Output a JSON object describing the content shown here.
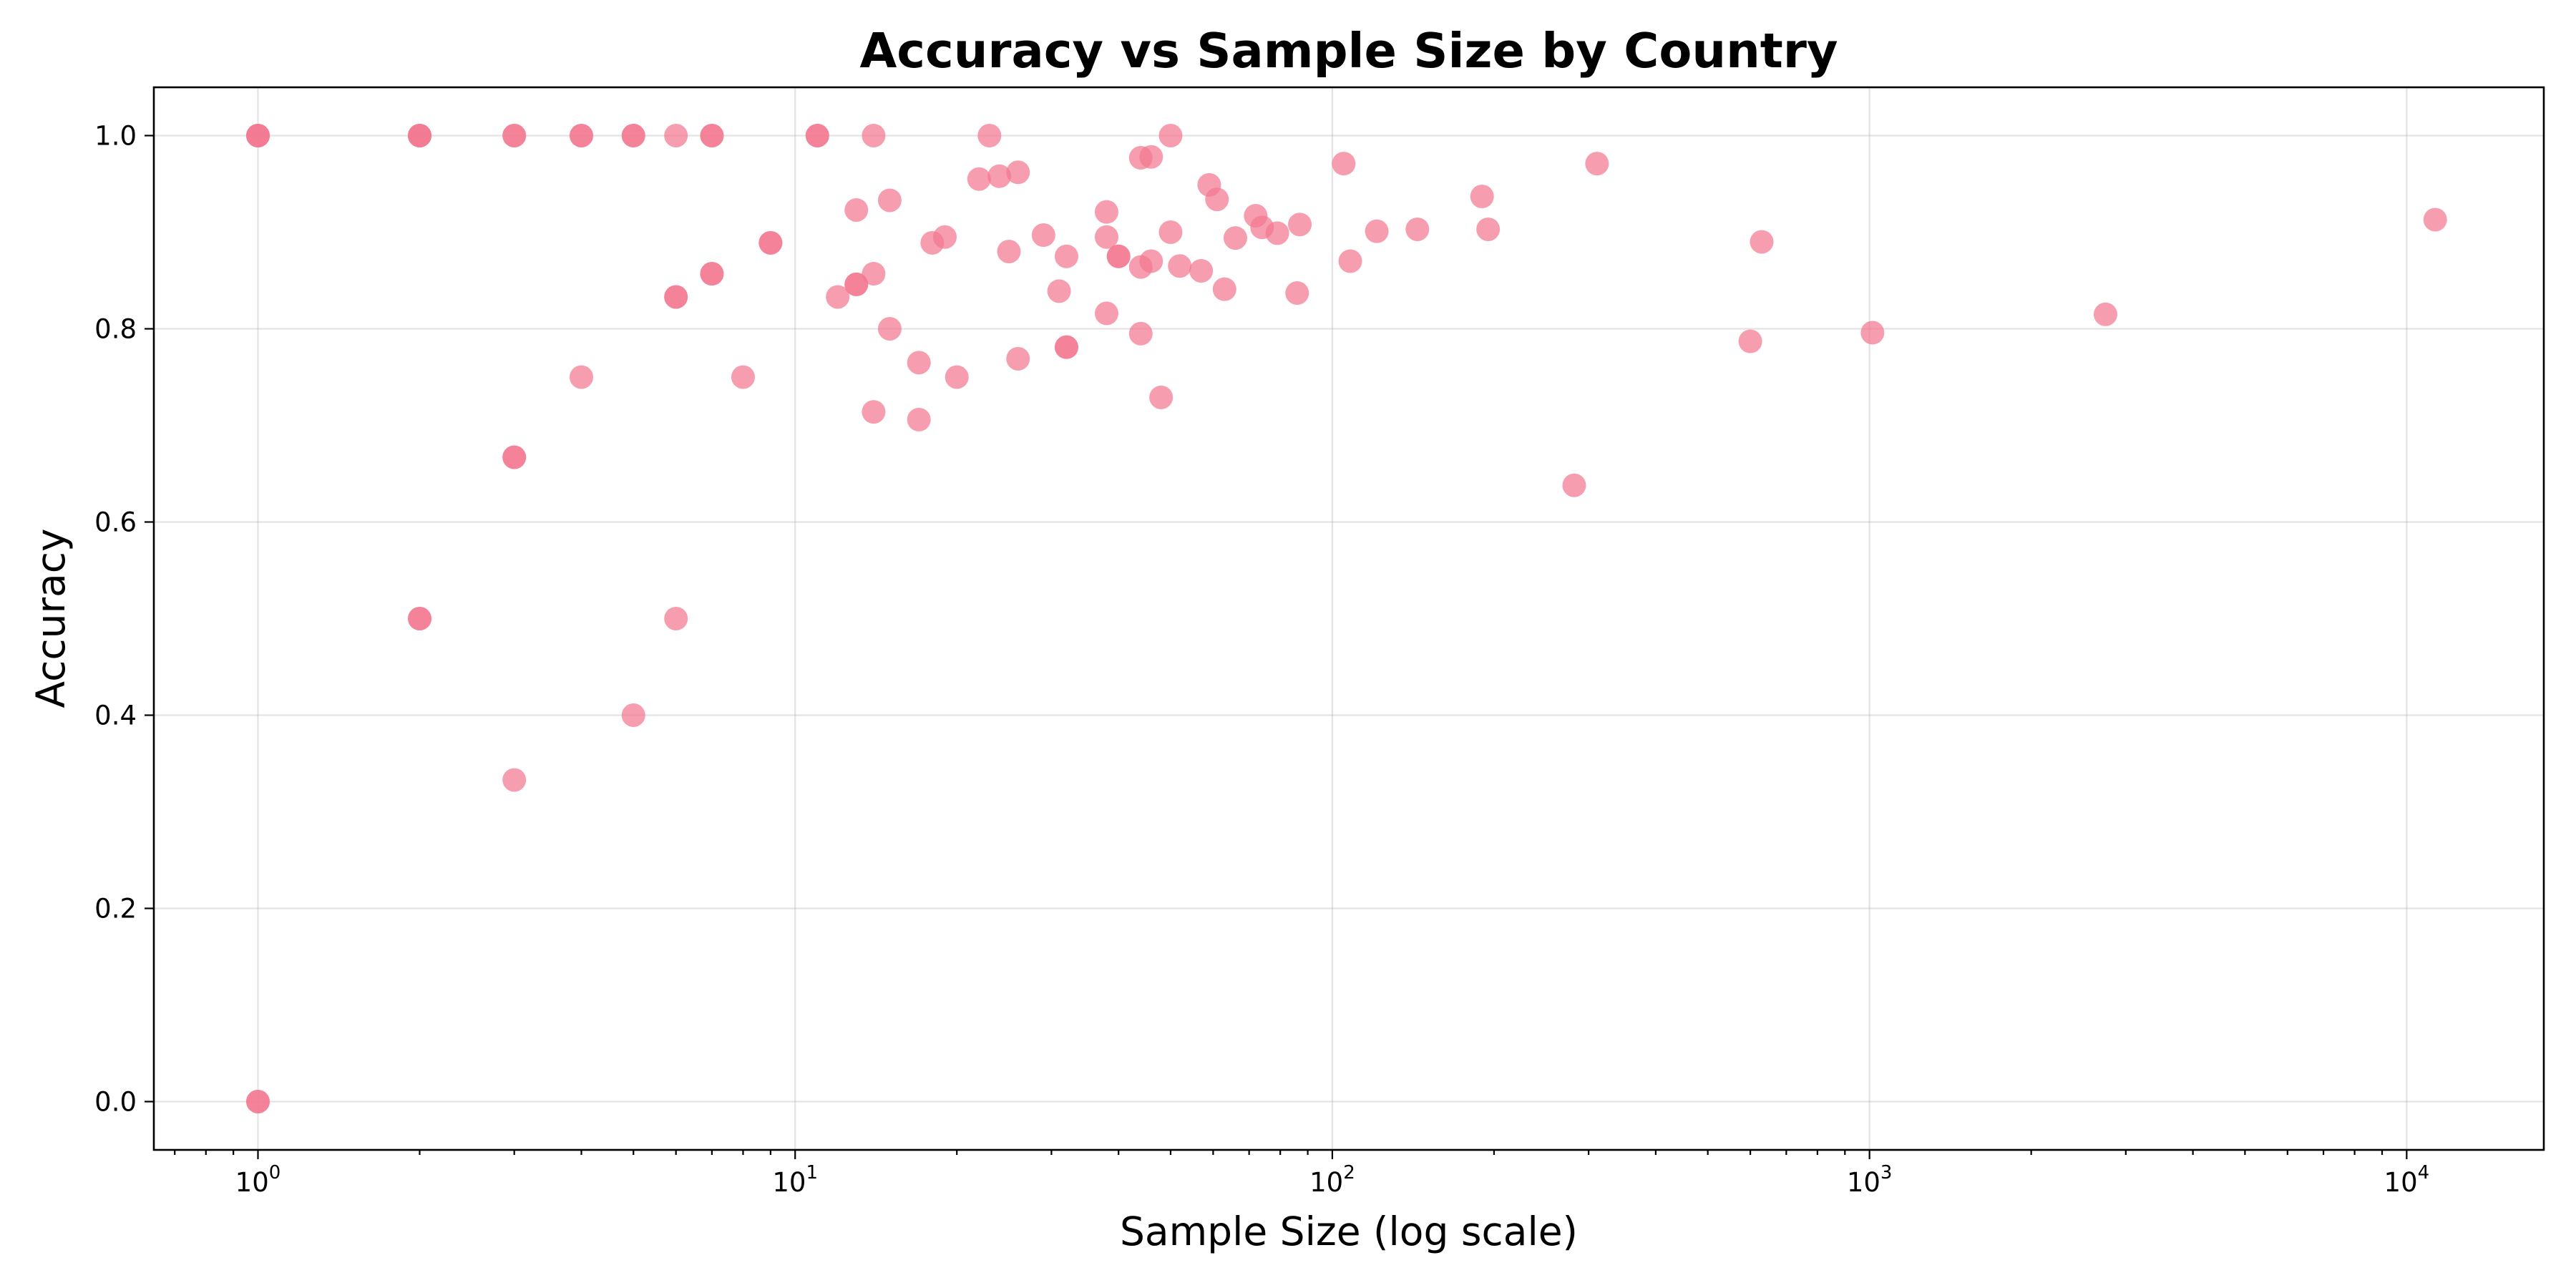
{
  "chart_data": {
    "type": "scatter",
    "title": "Accuracy vs Sample Size by Country",
    "xlabel": "Sample Size (log scale)",
    "ylabel": "Accuracy",
    "x_scale": "log",
    "xlim": [
      0.64,
      18000
    ],
    "ylim": [
      -0.05,
      1.05
    ],
    "x_ticks": [
      {
        "value": 1,
        "base": "10",
        "exp": "0"
      },
      {
        "value": 10,
        "base": "10",
        "exp": "1"
      },
      {
        "value": 100,
        "base": "10",
        "exp": "2"
      },
      {
        "value": 1000,
        "base": "10",
        "exp": "3"
      },
      {
        "value": 10000,
        "base": "10",
        "exp": "4"
      }
    ],
    "y_ticks": [
      "0.0",
      "0.2",
      "0.4",
      "0.6",
      "0.8",
      "1.0"
    ],
    "grid": true,
    "marker_color": "#f37890",
    "marker_alpha": 0.72,
    "points": [
      {
        "x": 1,
        "y": 1.0
      },
      {
        "x": 1,
        "y": 1.0
      },
      {
        "x": 1,
        "y": 1.0
      },
      {
        "x": 1,
        "y": 0.0
      },
      {
        "x": 1,
        "y": 0.0
      },
      {
        "x": 2,
        "y": 1.0
      },
      {
        "x": 2,
        "y": 1.0
      },
      {
        "x": 2,
        "y": 1.0
      },
      {
        "x": 2,
        "y": 0.5
      },
      {
        "x": 2,
        "y": 0.5
      },
      {
        "x": 3,
        "y": 1.0
      },
      {
        "x": 3,
        "y": 1.0
      },
      {
        "x": 3,
        "y": 0.667
      },
      {
        "x": 3,
        "y": 0.667
      },
      {
        "x": 3,
        "y": 0.333
      },
      {
        "x": 4,
        "y": 1.0
      },
      {
        "x": 4,
        "y": 1.0
      },
      {
        "x": 4,
        "y": 0.75
      },
      {
        "x": 5,
        "y": 1.0
      },
      {
        "x": 5,
        "y": 1.0
      },
      {
        "x": 5,
        "y": 0.4
      },
      {
        "x": 6,
        "y": 1.0
      },
      {
        "x": 6,
        "y": 0.833
      },
      {
        "x": 6,
        "y": 0.833
      },
      {
        "x": 6,
        "y": 0.5
      },
      {
        "x": 7,
        "y": 1.0
      },
      {
        "x": 7,
        "y": 1.0
      },
      {
        "x": 7,
        "y": 0.857
      },
      {
        "x": 7,
        "y": 0.857
      },
      {
        "x": 8,
        "y": 0.75
      },
      {
        "x": 9,
        "y": 0.889
      },
      {
        "x": 9,
        "y": 0.889
      },
      {
        "x": 11,
        "y": 1.0
      },
      {
        "x": 11,
        "y": 1.0
      },
      {
        "x": 12,
        "y": 0.833
      },
      {
        "x": 13,
        "y": 0.923
      },
      {
        "x": 13,
        "y": 0.846
      },
      {
        "x": 13,
        "y": 0.846
      },
      {
        "x": 14,
        "y": 1.0
      },
      {
        "x": 14,
        "y": 0.857
      },
      {
        "x": 14,
        "y": 0.714
      },
      {
        "x": 15,
        "y": 0.933
      },
      {
        "x": 15,
        "y": 0.8
      },
      {
        "x": 17,
        "y": 0.765
      },
      {
        "x": 17,
        "y": 0.706
      },
      {
        "x": 18,
        "y": 0.889
      },
      {
        "x": 19,
        "y": 0.895
      },
      {
        "x": 20,
        "y": 0.75
      },
      {
        "x": 22,
        "y": 0.955
      },
      {
        "x": 23,
        "y": 1.0
      },
      {
        "x": 24,
        "y": 0.958
      },
      {
        "x": 25,
        "y": 0.88
      },
      {
        "x": 26,
        "y": 0.962
      },
      {
        "x": 26,
        "y": 0.769
      },
      {
        "x": 29,
        "y": 0.897
      },
      {
        "x": 31,
        "y": 0.839
      },
      {
        "x": 32,
        "y": 0.875
      },
      {
        "x": 32,
        "y": 0.781
      },
      {
        "x": 32,
        "y": 0.781
      },
      {
        "x": 38,
        "y": 0.921
      },
      {
        "x": 38,
        "y": 0.895
      },
      {
        "x": 38,
        "y": 0.816
      },
      {
        "x": 40,
        "y": 0.875
      },
      {
        "x": 40,
        "y": 0.875
      },
      {
        "x": 44,
        "y": 0.977
      },
      {
        "x": 44,
        "y": 0.864
      },
      {
        "x": 44,
        "y": 0.795
      },
      {
        "x": 46,
        "y": 0.978
      },
      {
        "x": 46,
        "y": 0.87
      },
      {
        "x": 48,
        "y": 0.729
      },
      {
        "x": 50,
        "y": 1.0
      },
      {
        "x": 50,
        "y": 0.9
      },
      {
        "x": 52,
        "y": 0.865
      },
      {
        "x": 57,
        "y": 0.86
      },
      {
        "x": 59,
        "y": 0.949
      },
      {
        "x": 61,
        "y": 0.934
      },
      {
        "x": 63,
        "y": 0.841
      },
      {
        "x": 66,
        "y": 0.894
      },
      {
        "x": 72,
        "y": 0.917
      },
      {
        "x": 74,
        "y": 0.905
      },
      {
        "x": 79,
        "y": 0.899
      },
      {
        "x": 86,
        "y": 0.837
      },
      {
        "x": 87,
        "y": 0.908
      },
      {
        "x": 105,
        "y": 0.971
      },
      {
        "x": 108,
        "y": 0.87
      },
      {
        "x": 121,
        "y": 0.901
      },
      {
        "x": 144,
        "y": 0.903
      },
      {
        "x": 190,
        "y": 0.937
      },
      {
        "x": 195,
        "y": 0.903
      },
      {
        "x": 282,
        "y": 0.638
      },
      {
        "x": 311,
        "y": 0.971
      },
      {
        "x": 600,
        "y": 0.787
      },
      {
        "x": 630,
        "y": 0.89
      },
      {
        "x": 1013,
        "y": 0.796
      },
      {
        "x": 2750,
        "y": 0.815
      },
      {
        "x": 11300,
        "y": 0.913
      }
    ]
  }
}
